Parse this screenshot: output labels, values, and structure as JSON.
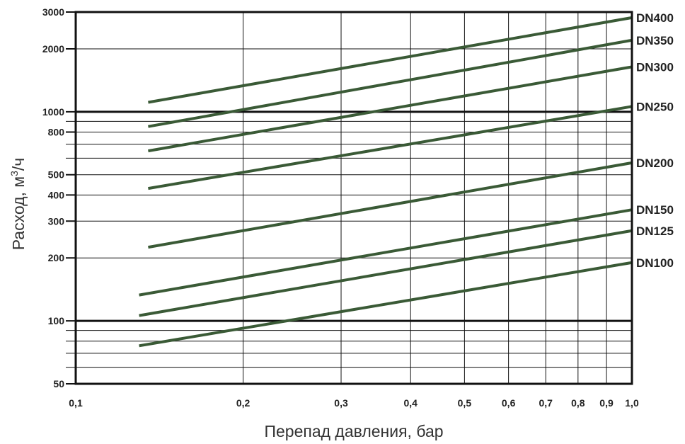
{
  "chart_data": {
    "type": "line",
    "x_scale": "log",
    "y_scale": "log",
    "xlim": [
      0.1,
      1.0
    ],
    "ylim": [
      50,
      3000
    ],
    "xlabel": "Перепад давления, бар",
    "ylabel_main": "Расход, м",
    "ylabel_sup": "3",
    "ylabel_tail": "/ч",
    "x_ticks": [
      {
        "value": 0.1,
        "label": "0,1"
      },
      {
        "value": 0.2,
        "label": "0,2"
      },
      {
        "value": 0.3,
        "label": "0,3"
      },
      {
        "value": 0.4,
        "label": "0,4"
      },
      {
        "value": 0.5,
        "label": "0,5"
      },
      {
        "value": 0.6,
        "label": "0,6"
      },
      {
        "value": 0.7,
        "label": "0,7"
      },
      {
        "value": 0.8,
        "label": "0,8"
      },
      {
        "value": 0.9,
        "label": "0,9"
      },
      {
        "value": 1.0,
        "label": "1,0"
      }
    ],
    "y_ticks": [
      {
        "value": 50,
        "label": "50"
      },
      {
        "value": 100,
        "label": "100"
      },
      {
        "value": 200,
        "label": "200"
      },
      {
        "value": 300,
        "label": "300"
      },
      {
        "value": 400,
        "label": "400"
      },
      {
        "value": 500,
        "label": "500"
      },
      {
        "value": 800,
        "label": "800"
      },
      {
        "value": 1000,
        "label": "1000"
      },
      {
        "value": 2000,
        "label": "2000"
      },
      {
        "value": 3000,
        "label": "3000"
      }
    ],
    "y_minor_ticks": [
      60,
      70,
      80,
      90,
      600,
      700,
      900
    ],
    "y_major_lines": [
      100,
      1000
    ],
    "line_color": "#3a5a36",
    "series": [
      {
        "name": "DN400",
        "x": [
          0.135,
          1.0
        ],
        "y": [
          1110,
          2820
        ]
      },
      {
        "name": "DN350",
        "x": [
          0.135,
          1.0
        ],
        "y": [
          850,
          2200
        ]
      },
      {
        "name": "DN300",
        "x": [
          0.135,
          1.0
        ],
        "y": [
          650,
          1640
        ]
      },
      {
        "name": "DN250",
        "x": [
          0.135,
          1.0
        ],
        "y": [
          430,
          1060
        ]
      },
      {
        "name": "DN200",
        "x": [
          0.135,
          1.0
        ],
        "y": [
          225,
          570
        ]
      },
      {
        "name": "DN150",
        "x": [
          0.13,
          1.0
        ],
        "y": [
          133,
          340
        ]
      },
      {
        "name": "DN125",
        "x": [
          0.13,
          1.0
        ],
        "y": [
          106,
          270
        ]
      },
      {
        "name": "DN100",
        "x": [
          0.13,
          1.0
        ],
        "y": [
          76,
          190
        ]
      }
    ]
  }
}
